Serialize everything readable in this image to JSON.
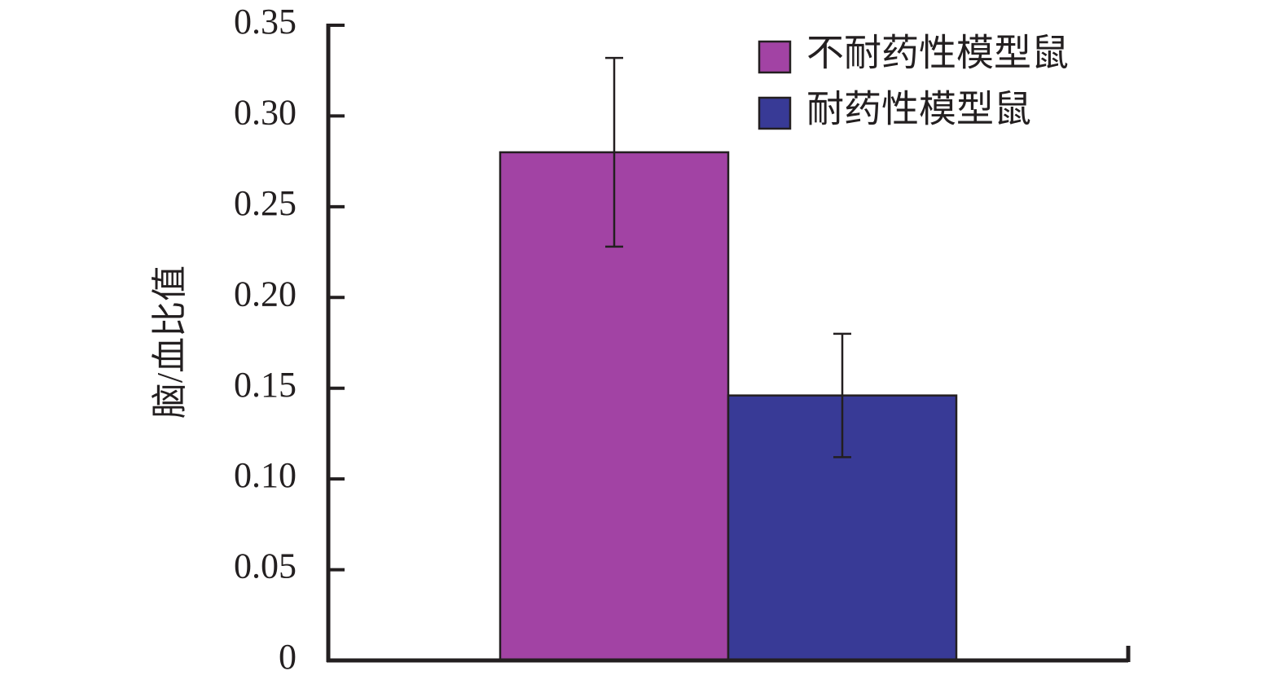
{
  "chart_data": {
    "type": "bar",
    "ylabel": "脑/血比值",
    "categories": [
      null
    ],
    "series": [
      {
        "name": "不耐药性模型鼠",
        "color": "#a243a4",
        "values": [
          0.28
        ],
        "errors": [
          0.052
        ]
      },
      {
        "name": "耐药性模型鼠",
        "color": "#383a96",
        "values": [
          0.146
        ],
        "errors": [
          0.034
        ]
      }
    ],
    "ylim": [
      0,
      0.35
    ],
    "yticks": [
      0,
      0.05,
      {
        "value": 0.1,
        "label": "0.10"
      },
      0.15,
      {
        "value": 0.2,
        "label": "0.20"
      },
      0.25,
      {
        "value": 0.3,
        "label": "0.30"
      },
      0.35
    ],
    "legend": "upper-right"
  }
}
